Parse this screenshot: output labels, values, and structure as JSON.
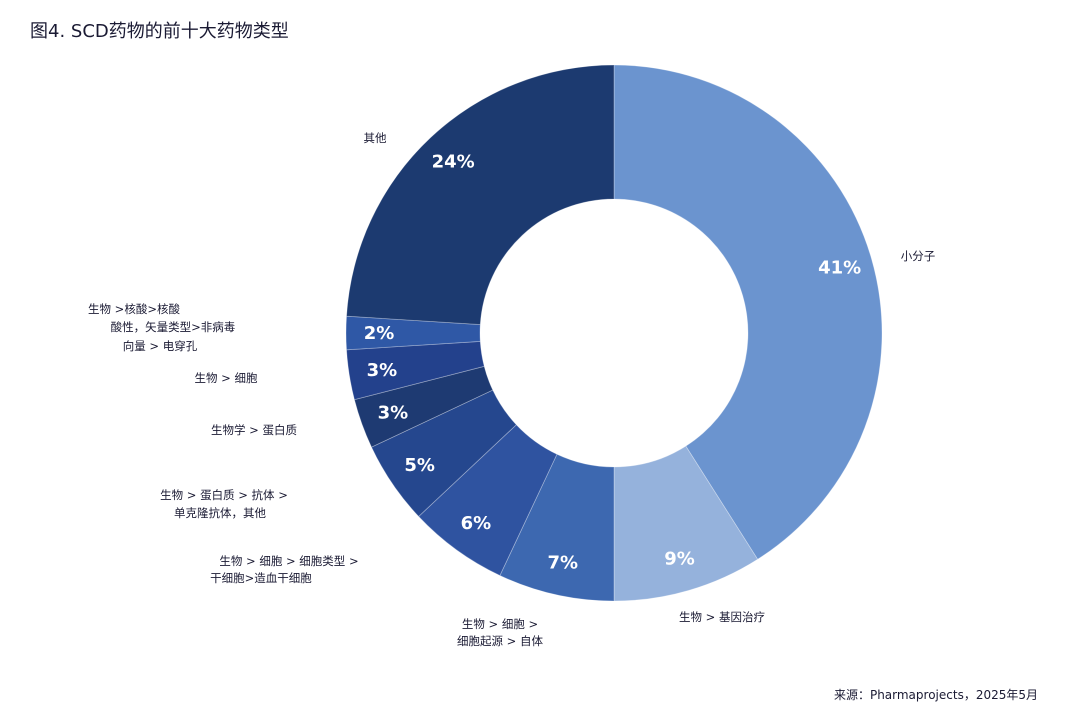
{
  "title": "图4. SCD药物的前十大药物类型",
  "source": "来源：Pharmaprojects，2025年5月",
  "chart_data": {
    "type": "pie",
    "subtype": "donut",
    "title": "图4. SCD药物的前十大药物类型",
    "unit": "%",
    "slices": [
      {
        "label": [
          "小分子"
        ],
        "value": 41,
        "display": "41%",
        "color": "#6b94cf"
      },
      {
        "label": [
          "生物 > 基因治疗"
        ],
        "value": 9,
        "display": "9%",
        "color": "#95b2dc"
      },
      {
        "label": [
          "生物 > 细胞 >",
          "细胞起源 > 自体"
        ],
        "value": 7,
        "display": "7%",
        "color": "#3d68b0"
      },
      {
        "label": [
          "生物 > 细胞 > 细胞类型 >",
          "干细胞>造血干细胞"
        ],
        "value": 6,
        "display": "6%",
        "color": "#2f53a0"
      },
      {
        "label": [
          "生物 > 蛋白质 > 抗体 >",
          "单克隆抗体，其他"
        ],
        "value": 5,
        "display": "5%",
        "color": "#25478e"
      },
      {
        "label": [
          "生物学 > 蛋白质"
        ],
        "value": 3,
        "display": "3%",
        "color": "#1e3a72"
      },
      {
        "label": [
          "生物 > 细胞"
        ],
        "value": 3,
        "display": "3%",
        "color": "#23418c"
      },
      {
        "label": [
          "生物 >核酸>核酸",
          "酸性，矢量类型>非病毒",
          "向量 > 电穿孔"
        ],
        "value": 2,
        "display": "2%",
        "color": "#2f58a6"
      },
      {
        "label": [
          "其他"
        ],
        "value": 24,
        "display": "24%",
        "color": "#1c3a70"
      }
    ],
    "start": "top",
    "direction": "clockwise",
    "legend": "none"
  }
}
